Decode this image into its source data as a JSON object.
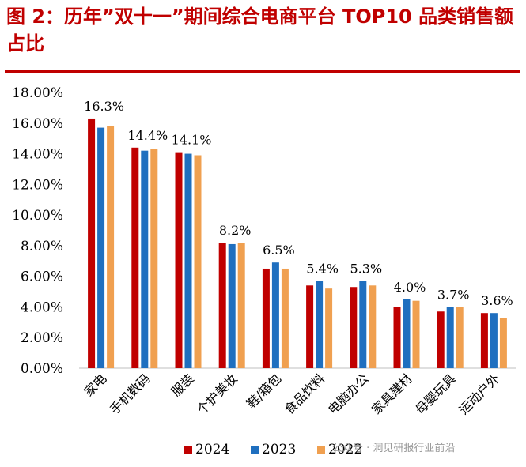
{
  "title": "图 2：历年”双十一”期间综合电商平台 TOP10 品类销售额占比",
  "watermark": "公众号 · 洞见研报行业前沿",
  "colors": {
    "2024": "#c00000",
    "2023": "#1f6fbf",
    "2022": "#f0a050",
    "title": "#c00000"
  },
  "chart_data": {
    "type": "bar",
    "categories": [
      "家电",
      "手机数码",
      "服装",
      "个护美妆",
      "鞋/箱包",
      "食品饮料",
      "电脑办公",
      "家具建材",
      "母婴玩具",
      "运动户外"
    ],
    "series": [
      {
        "name": "2024",
        "values": [
          16.3,
          14.4,
          14.1,
          8.2,
          6.5,
          5.4,
          5.3,
          4.0,
          3.7,
          3.6
        ]
      },
      {
        "name": "2023",
        "values": [
          15.7,
          14.2,
          14.0,
          8.1,
          6.9,
          5.7,
          5.7,
          4.5,
          4.0,
          3.6
        ]
      },
      {
        "name": "2022",
        "values": [
          15.8,
          14.3,
          13.9,
          8.2,
          6.5,
          5.2,
          5.4,
          4.4,
          4.0,
          3.3
        ]
      }
    ],
    "data_labels": [
      "16.3%",
      "14.4%",
      "14.1%",
      "8.2%",
      "6.5%",
      "5.4%",
      "5.3%",
      "4.0%",
      "3.7%",
      "3.6%"
    ],
    "yticks": [
      "0.00%",
      "2.00%",
      "4.00%",
      "6.00%",
      "8.00%",
      "10.00%",
      "12.00%",
      "14.00%",
      "16.00%",
      "18.00%"
    ],
    "ylim": [
      0,
      18
    ],
    "legend": {
      "placement": "bottom",
      "entries": [
        "2024",
        "2023",
        "2022"
      ]
    },
    "grid": false
  }
}
